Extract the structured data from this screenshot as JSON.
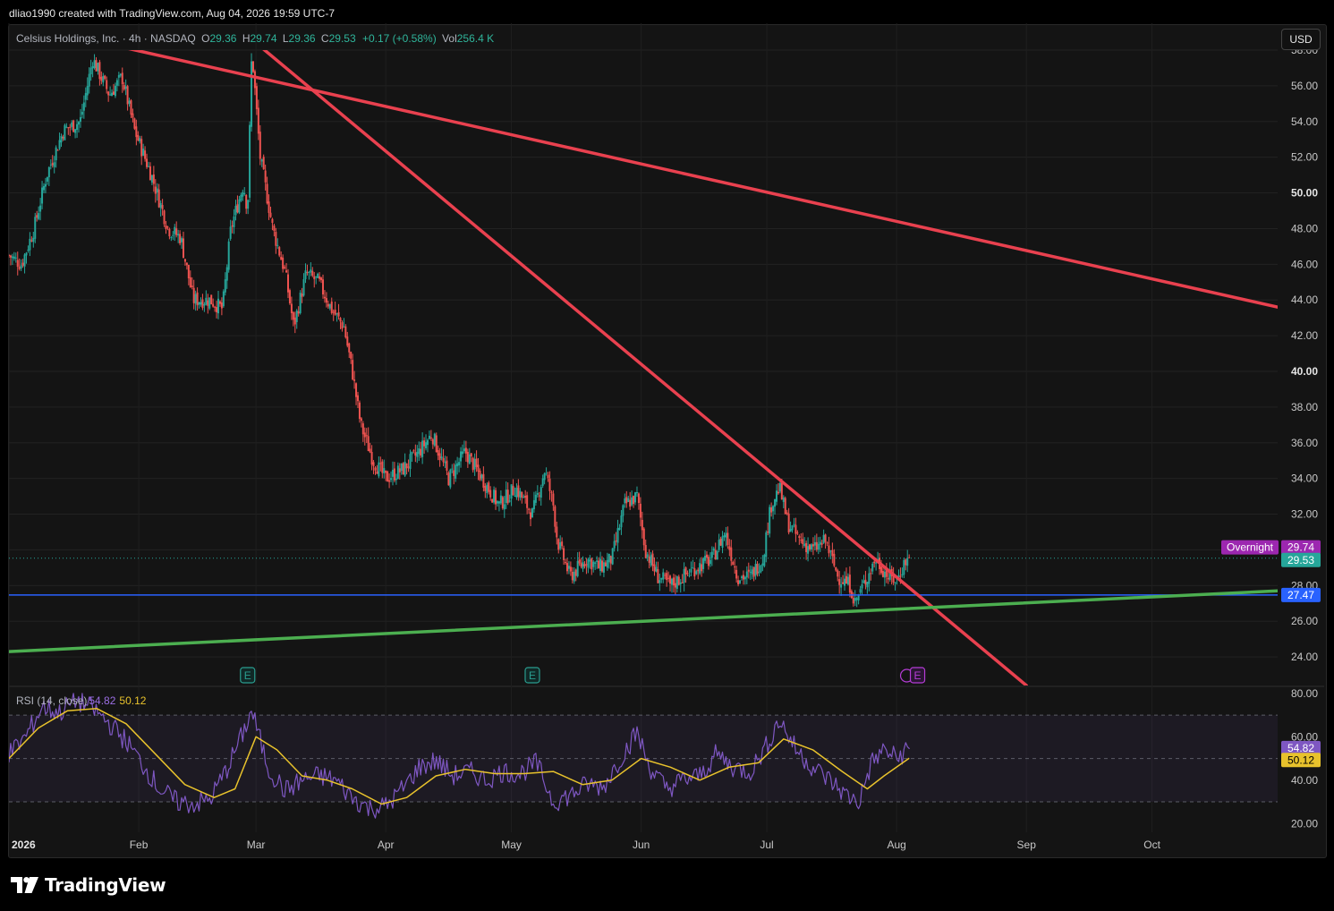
{
  "header": "dliao1990 created with TradingView.com, Aug 04, 2026 19:59 UTC-7",
  "legend": {
    "symbol": "Celsius Holdings, Inc. · 4h · NASDAQ",
    "open_label": "O",
    "open": "29.36",
    "high_label": "H",
    "high": "29.74",
    "low_label": "L",
    "low": "29.36",
    "close_label": "C",
    "close": "29.53",
    "change": "+0.17 (+0.58%)",
    "vol_label": "Vol",
    "volume": "256.4 K"
  },
  "currency_button": "USD",
  "rsi_legend": {
    "label": "RSI (14, close)",
    "rsi": "54.82",
    "ma": "50.12"
  },
  "footer_logo": "TradingView",
  "colors": {
    "up": "#26a69a",
    "down": "#ef5350",
    "trend_red": "#e9414f",
    "trend_green": "#4caf50",
    "support_blue": "#2962ff",
    "rsi_line": "#7e57c2",
    "rsi_ma": "#e8c22c",
    "overnight": "#9c27b0"
  },
  "chart_data": [
    {
      "type": "candlestick",
      "title": "Celsius Holdings, Inc. · 4h · NASDAQ",
      "x_ticks": [
        "2026",
        "Feb",
        "Mar",
        "Apr",
        "May",
        "Jun",
        "Jul",
        "Aug",
        "Sep",
        "Oct"
      ],
      "y_ticks": [
        "24.00",
        "26.00",
        "28.00",
        "30.00",
        "32.00",
        "34.00",
        "36.00",
        "38.00",
        "40.00",
        "42.00",
        "44.00",
        "46.00",
        "48.00",
        "50.00",
        "52.00",
        "54.00",
        "56.00",
        "58.00"
      ],
      "ylim": [
        22.4,
        58.0
      ],
      "x_range": [
        "2026-01-01",
        "2026-10-31"
      ],
      "price_path": [
        {
          "date": "2026-01-01",
          "price": 46.5
        },
        {
          "date": "2026-01-04",
          "price": 46.0
        },
        {
          "date": "2026-01-07",
          "price": 48.0
        },
        {
          "date": "2026-01-10",
          "price": 51.0
        },
        {
          "date": "2026-01-14",
          "price": 53.5
        },
        {
          "date": "2026-01-18",
          "price": 54.0
        },
        {
          "date": "2026-01-21",
          "price": 57.5
        },
        {
          "date": "2026-01-25",
          "price": 55.5
        },
        {
          "date": "2026-01-28",
          "price": 56.5
        },
        {
          "date": "2026-01-31",
          "price": 53.5
        },
        {
          "date": "2026-02-04",
          "price": 51.0
        },
        {
          "date": "2026-02-08",
          "price": 48.0
        },
        {
          "date": "2026-02-11",
          "price": 47.5
        },
        {
          "date": "2026-02-14",
          "price": 44.0
        },
        {
          "date": "2026-02-18",
          "price": 44.0
        },
        {
          "date": "2026-02-21",
          "price": 43.5
        },
        {
          "date": "2026-02-23",
          "price": 48.0
        },
        {
          "date": "2026-02-26",
          "price": 50.5
        },
        {
          "date": "2026-02-27",
          "price": 49.0
        },
        {
          "date": "2026-02-28",
          "price": 58.0
        },
        {
          "date": "2026-03-02",
          "price": 52.0
        },
        {
          "date": "2026-03-05",
          "price": 48.0
        },
        {
          "date": "2026-03-08",
          "price": 45.5
        },
        {
          "date": "2026-03-10",
          "price": 42.5
        },
        {
          "date": "2026-03-13",
          "price": 45.5
        },
        {
          "date": "2026-03-16",
          "price": 45.0
        },
        {
          "date": "2026-03-19",
          "price": 43.5
        },
        {
          "date": "2026-03-22",
          "price": 42.5
        },
        {
          "date": "2026-03-24",
          "price": 40.0
        },
        {
          "date": "2026-03-26",
          "price": 37.0
        },
        {
          "date": "2026-03-29",
          "price": 35.0
        },
        {
          "date": "2026-04-01",
          "price": 34.0
        },
        {
          "date": "2026-04-05",
          "price": 34.5
        },
        {
          "date": "2026-04-09",
          "price": 35.5
        },
        {
          "date": "2026-04-12",
          "price": 36.5
        },
        {
          "date": "2026-04-16",
          "price": 34.0
        },
        {
          "date": "2026-04-20",
          "price": 35.5
        },
        {
          "date": "2026-04-24",
          "price": 34.0
        },
        {
          "date": "2026-04-28",
          "price": 32.5
        },
        {
          "date": "2026-05-02",
          "price": 33.5
        },
        {
          "date": "2026-05-06",
          "price": 32.0
        },
        {
          "date": "2026-05-09",
          "price": 34.5
        },
        {
          "date": "2026-05-11",
          "price": 32.5
        },
        {
          "date": "2026-05-12",
          "price": 30.5
        },
        {
          "date": "2026-05-15",
          "price": 28.5
        },
        {
          "date": "2026-05-19",
          "price": 29.5
        },
        {
          "date": "2026-05-22",
          "price": 29.0
        },
        {
          "date": "2026-05-25",
          "price": 29.5
        },
        {
          "date": "2026-05-28",
          "price": 32.5
        },
        {
          "date": "2026-05-31",
          "price": 33.0
        },
        {
          "date": "2026-06-02",
          "price": 30.0
        },
        {
          "date": "2026-06-05",
          "price": 28.5
        },
        {
          "date": "2026-06-08",
          "price": 28.0
        },
        {
          "date": "2026-06-11",
          "price": 28.5
        },
        {
          "date": "2026-06-14",
          "price": 29.0
        },
        {
          "date": "2026-06-18",
          "price": 29.5
        },
        {
          "date": "2026-06-21",
          "price": 31.0
        },
        {
          "date": "2026-06-24",
          "price": 28.5
        },
        {
          "date": "2026-06-27",
          "price": 28.5
        },
        {
          "date": "2026-06-30",
          "price": 29.5
        },
        {
          "date": "2026-07-02",
          "price": 32.5
        },
        {
          "date": "2026-07-04",
          "price": 33.5
        },
        {
          "date": "2026-07-06",
          "price": 31.5
        },
        {
          "date": "2026-07-09",
          "price": 30.5
        },
        {
          "date": "2026-07-12",
          "price": 30.0
        },
        {
          "date": "2026-07-15",
          "price": 30.5
        },
        {
          "date": "2026-07-18",
          "price": 28.5
        },
        {
          "date": "2026-07-21",
          "price": 28.0
        },
        {
          "date": "2026-07-22",
          "price": 27.0
        },
        {
          "date": "2026-07-24",
          "price": 28.0
        },
        {
          "date": "2026-07-27",
          "price": 29.5
        },
        {
          "date": "2026-07-30",
          "price": 28.5
        },
        {
          "date": "2026-08-01",
          "price": 28.3
        },
        {
          "date": "2026-08-03",
          "price": 29.36
        },
        {
          "date": "2026-08-04",
          "price": 29.53
        }
      ],
      "last_bar": {
        "open": 29.36,
        "high": 29.74,
        "low": 29.36,
        "close": 29.53,
        "volume": "256.4 K"
      },
      "trendlines": [
        {
          "color": "red",
          "from": {
            "date": "2026-01-16",
            "price": 58.8
          },
          "to": {
            "date": "2026-10-31",
            "price": 43.6
          }
        },
        {
          "color": "red",
          "from": {
            "date": "2026-02-28",
            "price": 58.6
          },
          "to": {
            "date": "2026-09-01",
            "price": 22.4
          }
        },
        {
          "color": "green",
          "from": {
            "date": "2026-01-01",
            "price": 24.3
          },
          "to": {
            "date": "2026-10-31",
            "price": 27.7
          }
        }
      ],
      "horizontal_lines": [
        {
          "price": 27.47,
          "label": "27.47",
          "color": "blue"
        },
        {
          "price": 29.53,
          "label": "29.53",
          "style": "dotted",
          "color": "teal"
        }
      ],
      "price_labels": [
        {
          "text": "Overnight",
          "value": "29.74",
          "color": "purple"
        },
        {
          "text": "",
          "value": "29.53",
          "color": "teal"
        },
        {
          "text": "",
          "value": "27.47",
          "color": "blue"
        }
      ],
      "earnings_markers": [
        {
          "date": "2026-02-27",
          "label": "E"
        },
        {
          "date": "2026-05-06",
          "label": "E"
        },
        {
          "date": "2026-08-06",
          "label": "E"
        }
      ]
    },
    {
      "type": "line",
      "title": "RSI (14, close)",
      "y_ticks": [
        "20.00",
        "40.00",
        "60.00",
        "80.00"
      ],
      "ylim": [
        16,
        82
      ],
      "bands": [
        30,
        50,
        70
      ],
      "series": [
        {
          "name": "RSI",
          "color": "#7e57c2",
          "points": [
            {
              "date": "2026-01-01",
              "value": 52
            },
            {
              "date": "2026-01-05",
              "value": 60
            },
            {
              "date": "2026-01-09",
              "value": 74
            },
            {
              "date": "2026-01-13",
              "value": 71
            },
            {
              "date": "2026-01-17",
              "value": 77
            },
            {
              "date": "2026-01-21",
              "value": 73
            },
            {
              "date": "2026-01-25",
              "value": 66
            },
            {
              "date": "2026-01-29",
              "value": 58
            },
            {
              "date": "2026-02-02",
              "value": 47
            },
            {
              "date": "2026-02-06",
              "value": 36
            },
            {
              "date": "2026-02-10",
              "value": 30
            },
            {
              "date": "2026-02-14",
              "value": 29
            },
            {
              "date": "2026-02-18",
              "value": 31
            },
            {
              "date": "2026-02-22",
              "value": 45
            },
            {
              "date": "2026-02-26",
              "value": 62
            },
            {
              "date": "2026-02-28",
              "value": 72
            },
            {
              "date": "2026-03-04",
              "value": 45
            },
            {
              "date": "2026-03-08",
              "value": 35
            },
            {
              "date": "2026-03-12",
              "value": 40
            },
            {
              "date": "2026-03-16",
              "value": 42
            },
            {
              "date": "2026-03-20",
              "value": 40
            },
            {
              "date": "2026-03-24",
              "value": 32
            },
            {
              "date": "2026-03-28",
              "value": 27
            },
            {
              "date": "2026-04-01",
              "value": 28
            },
            {
              "date": "2026-04-05",
              "value": 36
            },
            {
              "date": "2026-04-09",
              "value": 46
            },
            {
              "date": "2026-04-13",
              "value": 49
            },
            {
              "date": "2026-04-17",
              "value": 42
            },
            {
              "date": "2026-04-21",
              "value": 44
            },
            {
              "date": "2026-04-25",
              "value": 40
            },
            {
              "date": "2026-04-29",
              "value": 44
            },
            {
              "date": "2026-05-03",
              "value": 43
            },
            {
              "date": "2026-05-07",
              "value": 48
            },
            {
              "date": "2026-05-11",
              "value": 30
            },
            {
              "date": "2026-05-15",
              "value": 33
            },
            {
              "date": "2026-05-19",
              "value": 38
            },
            {
              "date": "2026-05-23",
              "value": 37
            },
            {
              "date": "2026-05-27",
              "value": 50
            },
            {
              "date": "2026-05-31",
              "value": 62
            },
            {
              "date": "2026-06-03",
              "value": 46
            },
            {
              "date": "2026-06-07",
              "value": 36
            },
            {
              "date": "2026-06-11",
              "value": 40
            },
            {
              "date": "2026-06-15",
              "value": 42
            },
            {
              "date": "2026-06-19",
              "value": 52
            },
            {
              "date": "2026-06-23",
              "value": 46
            },
            {
              "date": "2026-06-27",
              "value": 44
            },
            {
              "date": "2026-07-01",
              "value": 56
            },
            {
              "date": "2026-07-04",
              "value": 68
            },
            {
              "date": "2026-07-08",
              "value": 54
            },
            {
              "date": "2026-07-12",
              "value": 46
            },
            {
              "date": "2026-07-16",
              "value": 40
            },
            {
              "date": "2026-07-20",
              "value": 33
            },
            {
              "date": "2026-07-23",
              "value": 30
            },
            {
              "date": "2026-07-26",
              "value": 48
            },
            {
              "date": "2026-07-29",
              "value": 54
            },
            {
              "date": "2026-08-01",
              "value": 50
            },
            {
              "date": "2026-08-04",
              "value": 54.82
            }
          ]
        },
        {
          "name": "MA",
          "color": "#e8c22c",
          "points": [
            {
              "date": "2026-01-01",
              "value": 50
            },
            {
              "date": "2026-01-08",
              "value": 64
            },
            {
              "date": "2026-01-15",
              "value": 72
            },
            {
              "date": "2026-01-22",
              "value": 73
            },
            {
              "date": "2026-01-29",
              "value": 66
            },
            {
              "date": "2026-02-05",
              "value": 52
            },
            {
              "date": "2026-02-12",
              "value": 38
            },
            {
              "date": "2026-02-19",
              "value": 32
            },
            {
              "date": "2026-02-24",
              "value": 36
            },
            {
              "date": "2026-03-01",
              "value": 60
            },
            {
              "date": "2026-03-06",
              "value": 54
            },
            {
              "date": "2026-03-12",
              "value": 42
            },
            {
              "date": "2026-03-18",
              "value": 40
            },
            {
              "date": "2026-03-24",
              "value": 36
            },
            {
              "date": "2026-03-31",
              "value": 29
            },
            {
              "date": "2026-04-06",
              "value": 32
            },
            {
              "date": "2026-04-13",
              "value": 42
            },
            {
              "date": "2026-04-20",
              "value": 45
            },
            {
              "date": "2026-04-27",
              "value": 43
            },
            {
              "date": "2026-05-04",
              "value": 43
            },
            {
              "date": "2026-05-11",
              "value": 44
            },
            {
              "date": "2026-05-18",
              "value": 38
            },
            {
              "date": "2026-05-25",
              "value": 40
            },
            {
              "date": "2026-06-01",
              "value": 50
            },
            {
              "date": "2026-06-08",
              "value": 46
            },
            {
              "date": "2026-06-15",
              "value": 40
            },
            {
              "date": "2026-06-22",
              "value": 46
            },
            {
              "date": "2026-06-29",
              "value": 48
            },
            {
              "date": "2026-07-05",
              "value": 59
            },
            {
              "date": "2026-07-12",
              "value": 54
            },
            {
              "date": "2026-07-19",
              "value": 44
            },
            {
              "date": "2026-07-25",
              "value": 36
            },
            {
              "date": "2026-07-29",
              "value": 42
            },
            {
              "date": "2026-08-04",
              "value": 50.12
            }
          ]
        }
      ],
      "last_values": {
        "rsi": "54.82",
        "ma": "50.12"
      }
    }
  ]
}
